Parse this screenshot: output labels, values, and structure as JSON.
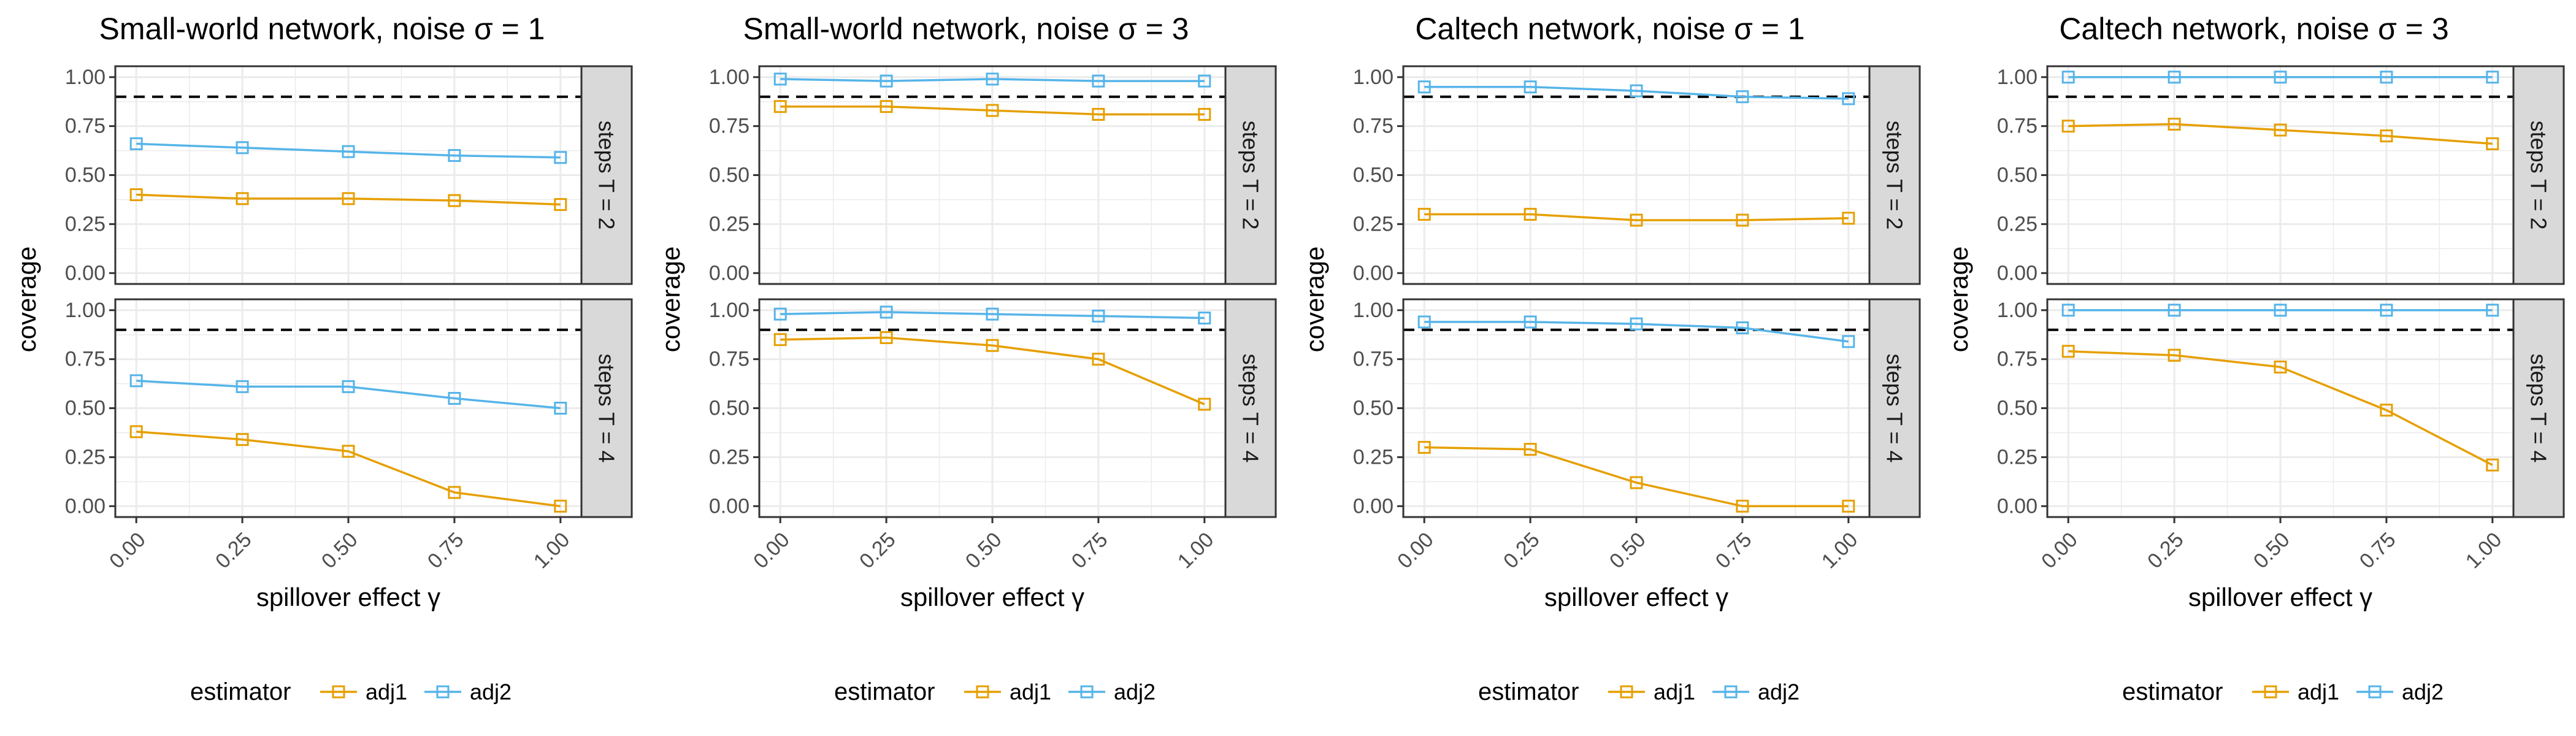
{
  "legend_title": "estimator",
  "colors": {
    "adj1": "#E69F00",
    "adj2": "#56B4E9",
    "strip_bg": "#D9D9D9",
    "grid": "#EBEBEB",
    "border": "#333333"
  },
  "chart_data": [
    {
      "type": "line",
      "title": "Small-world network, noise σ = 1",
      "xlabel": "spillover effect γ",
      "ylabel": "coverage",
      "x": [
        0.0,
        0.25,
        0.5,
        0.75,
        1.0
      ],
      "x_tick_labels": [
        "0.00",
        "0.25",
        "0.50",
        "0.75",
        "1.00"
      ],
      "y_tick_labels": [
        "0.00",
        "0.25",
        "0.50",
        "0.75",
        "1.00"
      ],
      "ylim": [
        0,
        1
      ],
      "reference_line": 0.9,
      "legend": {
        "position": "bottom",
        "entries": [
          "adj1",
          "adj2"
        ]
      },
      "facets": [
        {
          "strip": "steps T = 2",
          "series": [
            {
              "name": "adj1",
              "values": [
                0.4,
                0.38,
                0.38,
                0.37,
                0.35
              ]
            },
            {
              "name": "adj2",
              "values": [
                0.66,
                0.64,
                0.62,
                0.6,
                0.59
              ]
            }
          ]
        },
        {
          "strip": "steps T = 4",
          "series": [
            {
              "name": "adj1",
              "values": [
                0.38,
                0.34,
                0.28,
                0.07,
                0.0
              ]
            },
            {
              "name": "adj2",
              "values": [
                0.64,
                0.61,
                0.61,
                0.55,
                0.5
              ]
            }
          ]
        }
      ]
    },
    {
      "type": "line",
      "title": "Small-world network, noise σ = 3",
      "xlabel": "spillover effect γ",
      "ylabel": "coverage",
      "x": [
        0.0,
        0.25,
        0.5,
        0.75,
        1.0
      ],
      "x_tick_labels": [
        "0.00",
        "0.25",
        "0.50",
        "0.75",
        "1.00"
      ],
      "y_tick_labels": [
        "0.00",
        "0.25",
        "0.50",
        "0.75",
        "1.00"
      ],
      "ylim": [
        0,
        1
      ],
      "reference_line": 0.9,
      "legend": {
        "position": "bottom",
        "entries": [
          "adj1",
          "adj2"
        ]
      },
      "facets": [
        {
          "strip": "steps T = 2",
          "series": [
            {
              "name": "adj1",
              "values": [
                0.85,
                0.85,
                0.83,
                0.81,
                0.81
              ]
            },
            {
              "name": "adj2",
              "values": [
                0.99,
                0.98,
                0.99,
                0.98,
                0.98
              ]
            }
          ]
        },
        {
          "strip": "steps T = 4",
          "series": [
            {
              "name": "adj1",
              "values": [
                0.85,
                0.86,
                0.82,
                0.75,
                0.52
              ]
            },
            {
              "name": "adj2",
              "values": [
                0.98,
                0.99,
                0.98,
                0.97,
                0.96
              ]
            }
          ]
        }
      ]
    },
    {
      "type": "line",
      "title": "Caltech network, noise σ = 1",
      "xlabel": "spillover effect γ",
      "ylabel": "coverage",
      "x": [
        0.0,
        0.25,
        0.5,
        0.75,
        1.0
      ],
      "x_tick_labels": [
        "0.00",
        "0.25",
        "0.50",
        "0.75",
        "1.00"
      ],
      "y_tick_labels": [
        "0.00",
        "0.25",
        "0.50",
        "0.75",
        "1.00"
      ],
      "ylim": [
        0,
        1
      ],
      "reference_line": 0.9,
      "legend": {
        "position": "bottom",
        "entries": [
          "adj1",
          "adj2"
        ]
      },
      "facets": [
        {
          "strip": "steps T = 2",
          "series": [
            {
              "name": "adj1",
              "values": [
                0.3,
                0.3,
                0.27,
                0.27,
                0.28
              ]
            },
            {
              "name": "adj2",
              "values": [
                0.95,
                0.95,
                0.93,
                0.9,
                0.89
              ]
            }
          ]
        },
        {
          "strip": "steps T = 4",
          "series": [
            {
              "name": "adj1",
              "values": [
                0.3,
                0.29,
                0.12,
                0.0,
                0.0
              ]
            },
            {
              "name": "adj2",
              "values": [
                0.94,
                0.94,
                0.93,
                0.91,
                0.84
              ]
            }
          ]
        }
      ]
    },
    {
      "type": "line",
      "title": "Caltech network, noise σ = 3",
      "xlabel": "spillover effect γ",
      "ylabel": "coverage",
      "x": [
        0.0,
        0.25,
        0.5,
        0.75,
        1.0
      ],
      "x_tick_labels": [
        "0.00",
        "0.25",
        "0.50",
        "0.75",
        "1.00"
      ],
      "y_tick_labels": [
        "0.00",
        "0.25",
        "0.50",
        "0.75",
        "1.00"
      ],
      "ylim": [
        0,
        1
      ],
      "reference_line": 0.9,
      "legend": {
        "position": "bottom",
        "entries": [
          "adj1",
          "adj2"
        ]
      },
      "facets": [
        {
          "strip": "steps T = 2",
          "series": [
            {
              "name": "adj1",
              "values": [
                0.75,
                0.76,
                0.73,
                0.7,
                0.66
              ]
            },
            {
              "name": "adj2",
              "values": [
                1.0,
                1.0,
                1.0,
                1.0,
                1.0
              ]
            }
          ]
        },
        {
          "strip": "steps T = 4",
          "series": [
            {
              "name": "adj1",
              "values": [
                0.79,
                0.77,
                0.71,
                0.49,
                0.21
              ]
            },
            {
              "name": "adj2",
              "values": [
                1.0,
                1.0,
                1.0,
                1.0,
                1.0
              ]
            }
          ]
        }
      ]
    }
  ]
}
